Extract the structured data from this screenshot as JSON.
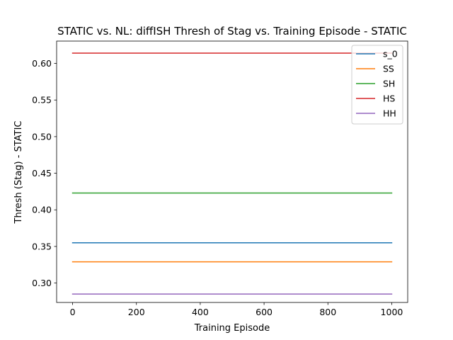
{
  "chart_data": {
    "type": "line",
    "title": "STATIC vs. NL: diffISH Thresh of Stag vs. Training Episode - STATIC",
    "xlabel": "Training Episode",
    "ylabel": "Thresh (Stag) - STATIC",
    "xlim": [
      -50,
      1050
    ],
    "ylim": [
      0.2735,
      0.6305
    ],
    "x_ticks": [
      0,
      200,
      400,
      600,
      800,
      1000
    ],
    "y_ticks": [
      0.3,
      0.35,
      0.4,
      0.45,
      0.5,
      0.55,
      0.6
    ],
    "x": [
      0,
      1000
    ],
    "grid": false,
    "legend_position": "top-right",
    "series": [
      {
        "name": "s_0",
        "color": "#1f77b4",
        "values": [
          0.355,
          0.355
        ]
      },
      {
        "name": "SS",
        "color": "#ff7f0e",
        "values": [
          0.329,
          0.329
        ]
      },
      {
        "name": "SH",
        "color": "#2ca02c",
        "values": [
          0.423,
          0.423
        ]
      },
      {
        "name": "HS",
        "color": "#d62728",
        "values": [
          0.614,
          0.614
        ]
      },
      {
        "name": "HH",
        "color": "#9467bd",
        "values": [
          0.285,
          0.285
        ]
      }
    ]
  }
}
